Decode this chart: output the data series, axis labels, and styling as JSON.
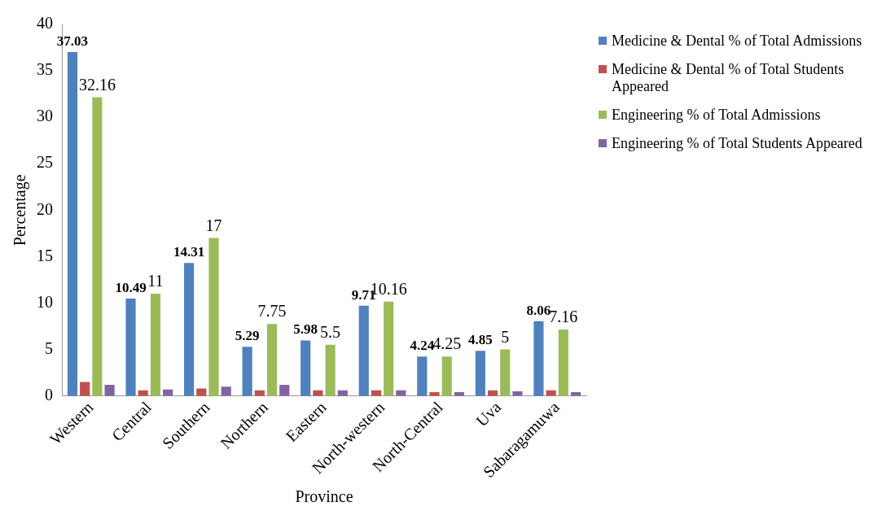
{
  "chart_data": {
    "type": "bar",
    "xlabel": "Province",
    "ylabel": "Percentage",
    "categories": [
      "Western",
      "Central",
      "Southern",
      "Northern",
      "Eastern",
      "North-western",
      "North-Central",
      "Uva",
      "Sabaragamuwa"
    ],
    "ylim": [
      0,
      40
    ],
    "yticks": [
      0,
      5,
      10,
      15,
      20,
      25,
      30,
      35,
      40
    ],
    "grid": false,
    "legend": "top right",
    "series": [
      {
        "name": "Medicine & Dental % of Total Admissions",
        "color": "#4f81bd",
        "values": [
          37.03,
          10.49,
          14.31,
          5.29,
          5.98,
          9.71,
          4.24,
          4.85,
          8.06
        ],
        "value_labels": [
          "37.03",
          "10.49",
          "14.31",
          "5.29",
          "5.98",
          "9.71",
          "4.24",
          "4.85",
          "8.06"
        ]
      },
      {
        "name": "Medicine & Dental % of Total Students Appeared",
        "color": "#c0504d",
        "values": [
          1.5,
          0.6,
          0.8,
          0.6,
          0.6,
          0.6,
          0.4,
          0.6,
          0.6
        ]
      },
      {
        "name": "Engineering % of Total Admissions",
        "color": "#9bbb59",
        "values": [
          32.16,
          11,
          17,
          7.75,
          5.5,
          10.16,
          4.25,
          5,
          7.16
        ],
        "value_labels": [
          "32.16",
          "11",
          "17",
          "7.75",
          "5.5",
          "10.16",
          "4.25",
          "5",
          "7.16"
        ]
      },
      {
        "name": "Engineering % of Total Students Appeared",
        "color": "#8064a2",
        "values": [
          1.2,
          0.7,
          1.0,
          1.2,
          0.6,
          0.6,
          0.4,
          0.5,
          0.4
        ]
      }
    ]
  }
}
